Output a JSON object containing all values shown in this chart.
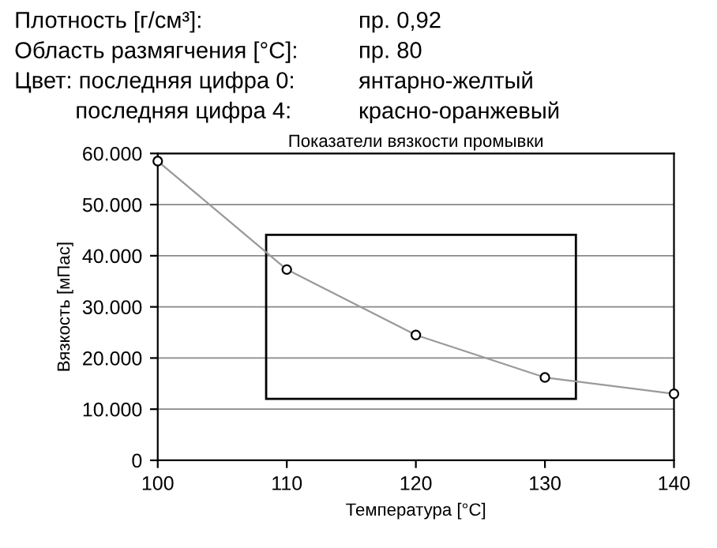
{
  "chart_data": {
    "type": "line",
    "title": "Показатели вязкости промывки",
    "xlabel": "Температура [°C]",
    "ylabel": "Вязкость [мПас]",
    "annotations": [
      "Плотность [г/см³]:",
      "пр. 0,92",
      "Область размягчения [°C]:",
      "пр. 80",
      "Цвет: последняя цифра 0:",
      "янтарно-желтый",
      "последняя цифра 4:",
      "красно-оранжевый"
    ],
    "x": [
      100,
      110,
      120,
      130,
      140
    ],
    "series": [
      {
        "color": "#999999",
        "values": [
          58500,
          37300,
          24500,
          16200,
          13000
        ]
      }
    ],
    "xlim": [
      100,
      140
    ],
    "xticks": [
      100,
      110,
      120,
      130,
      140
    ],
    "ylim": [
      0,
      60000
    ],
    "yticks": [
      0,
      {
        "value": 10000,
        "label": "10.000"
      },
      {
        "value": 20000,
        "label": "20.000"
      },
      {
        "value": 30000,
        "label": "30.000"
      },
      {
        "value": 40000,
        "label": "40.000"
      },
      {
        "value": 50000,
        "label": "50.000"
      },
      {
        "value": 60000,
        "label": "60.000"
      }
    ],
    "grid": "y",
    "marker": "circle",
    "line_style": "solid",
    "legend": false
  }
}
